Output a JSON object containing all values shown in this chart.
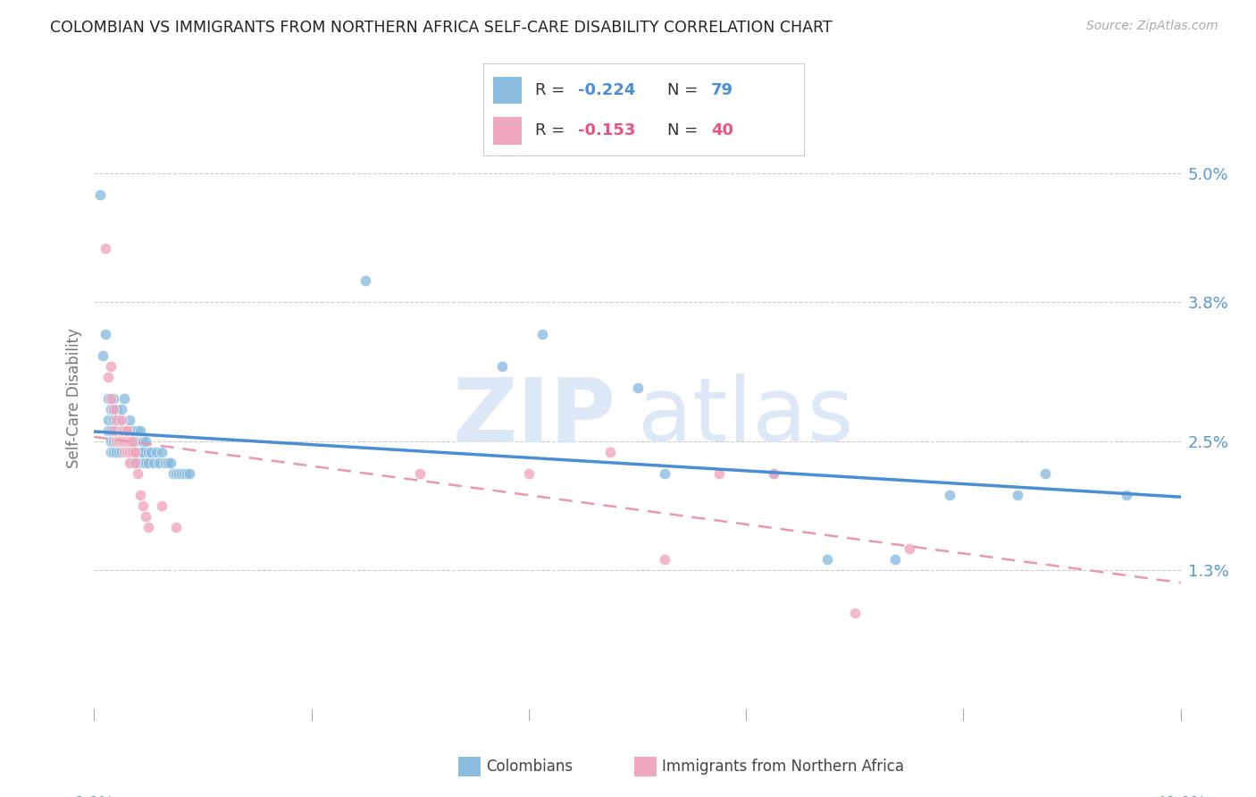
{
  "title": "COLOMBIAN VS IMMIGRANTS FROM NORTHERN AFRICA SELF-CARE DISABILITY CORRELATION CHART",
  "source": "Source: ZipAtlas.com",
  "ylabel": "Self-Care Disability",
  "ytick_labels": [
    "1.3%",
    "2.5%",
    "3.8%",
    "5.0%"
  ],
  "ytick_values": [
    0.013,
    0.025,
    0.038,
    0.05
  ],
  "xmin": 0.0,
  "xmax": 0.4,
  "ymin": 0.0,
  "ymax": 0.058,
  "colombian_scatter": [
    [
      0.002,
      0.048
    ],
    [
      0.003,
      0.033
    ],
    [
      0.004,
      0.035
    ],
    [
      0.005,
      0.029
    ],
    [
      0.005,
      0.027
    ],
    [
      0.005,
      0.026
    ],
    [
      0.006,
      0.028
    ],
    [
      0.006,
      0.026
    ],
    [
      0.006,
      0.025
    ],
    [
      0.006,
      0.024
    ],
    [
      0.007,
      0.029
    ],
    [
      0.007,
      0.027
    ],
    [
      0.007,
      0.025
    ],
    [
      0.007,
      0.024
    ],
    [
      0.008,
      0.028
    ],
    [
      0.008,
      0.026
    ],
    [
      0.008,
      0.025
    ],
    [
      0.008,
      0.024
    ],
    [
      0.009,
      0.027
    ],
    [
      0.009,
      0.025
    ],
    [
      0.009,
      0.024
    ],
    [
      0.01,
      0.028
    ],
    [
      0.01,
      0.026
    ],
    [
      0.01,
      0.025
    ],
    [
      0.01,
      0.024
    ],
    [
      0.011,
      0.029
    ],
    [
      0.011,
      0.026
    ],
    [
      0.011,
      0.025
    ],
    [
      0.012,
      0.026
    ],
    [
      0.012,
      0.025
    ],
    [
      0.012,
      0.024
    ],
    [
      0.013,
      0.027
    ],
    [
      0.013,
      0.025
    ],
    [
      0.013,
      0.024
    ],
    [
      0.014,
      0.026
    ],
    [
      0.014,
      0.024
    ],
    [
      0.014,
      0.023
    ],
    [
      0.015,
      0.025
    ],
    [
      0.015,
      0.024
    ],
    [
      0.015,
      0.023
    ],
    [
      0.016,
      0.026
    ],
    [
      0.016,
      0.024
    ],
    [
      0.016,
      0.023
    ],
    [
      0.017,
      0.026
    ],
    [
      0.017,
      0.024
    ],
    [
      0.018,
      0.025
    ],
    [
      0.018,
      0.024
    ],
    [
      0.018,
      0.023
    ],
    [
      0.019,
      0.025
    ],
    [
      0.019,
      0.023
    ],
    [
      0.02,
      0.024
    ],
    [
      0.02,
      0.023
    ],
    [
      0.021,
      0.024
    ],
    [
      0.022,
      0.023
    ],
    [
      0.023,
      0.024
    ],
    [
      0.024,
      0.023
    ],
    [
      0.025,
      0.024
    ],
    [
      0.026,
      0.023
    ],
    [
      0.027,
      0.023
    ],
    [
      0.028,
      0.023
    ],
    [
      0.029,
      0.022
    ],
    [
      0.03,
      0.022
    ],
    [
      0.031,
      0.022
    ],
    [
      0.032,
      0.022
    ],
    [
      0.033,
      0.022
    ],
    [
      0.034,
      0.022
    ],
    [
      0.035,
      0.022
    ],
    [
      0.1,
      0.04
    ],
    [
      0.15,
      0.032
    ],
    [
      0.165,
      0.035
    ],
    [
      0.2,
      0.03
    ],
    [
      0.21,
      0.022
    ],
    [
      0.25,
      0.022
    ],
    [
      0.27,
      0.014
    ],
    [
      0.295,
      0.014
    ],
    [
      0.315,
      0.02
    ],
    [
      0.34,
      0.02
    ],
    [
      0.35,
      0.022
    ],
    [
      0.38,
      0.02
    ]
  ],
  "northafrica_scatter": [
    [
      0.004,
      0.043
    ],
    [
      0.005,
      0.031
    ],
    [
      0.006,
      0.032
    ],
    [
      0.006,
      0.029
    ],
    [
      0.007,
      0.028
    ],
    [
      0.007,
      0.026
    ],
    [
      0.008,
      0.027
    ],
    [
      0.008,
      0.025
    ],
    [
      0.009,
      0.025
    ],
    [
      0.01,
      0.027
    ],
    [
      0.01,
      0.026
    ],
    [
      0.01,
      0.025
    ],
    [
      0.011,
      0.026
    ],
    [
      0.011,
      0.025
    ],
    [
      0.011,
      0.024
    ],
    [
      0.012,
      0.026
    ],
    [
      0.012,
      0.025
    ],
    [
      0.012,
      0.024
    ],
    [
      0.013,
      0.025
    ],
    [
      0.013,
      0.024
    ],
    [
      0.013,
      0.023
    ],
    [
      0.014,
      0.025
    ],
    [
      0.014,
      0.024
    ],
    [
      0.015,
      0.024
    ],
    [
      0.015,
      0.023
    ],
    [
      0.016,
      0.022
    ],
    [
      0.017,
      0.02
    ],
    [
      0.018,
      0.019
    ],
    [
      0.019,
      0.018
    ],
    [
      0.02,
      0.017
    ],
    [
      0.025,
      0.019
    ],
    [
      0.03,
      0.017
    ],
    [
      0.12,
      0.022
    ],
    [
      0.16,
      0.022
    ],
    [
      0.19,
      0.024
    ],
    [
      0.21,
      0.014
    ],
    [
      0.23,
      0.022
    ],
    [
      0.25,
      0.022
    ],
    [
      0.28,
      0.009
    ],
    [
      0.3,
      0.015
    ]
  ],
  "blue_line_color": "#4a8fd4",
  "pink_line_color": "#e899aa",
  "scatter_blue": "#8bbde0",
  "scatter_pink": "#f0a8be",
  "background_color": "#ffffff",
  "grid_color": "#cccccc",
  "title_color": "#222222",
  "axis_label_color": "#5599cc",
  "watermark_zip": "ZIP",
  "watermark_atlas": "atlas",
  "watermark_color": "#dce8f5",
  "legend_r1": "-0.224",
  "legend_n1": "79",
  "legend_r2": "-0.153",
  "legend_n2": "40",
  "legend_blue_text_color": "#4a8fd4",
  "legend_pink_text_color": "#e85580",
  "legend_dark_color": "#333333"
}
